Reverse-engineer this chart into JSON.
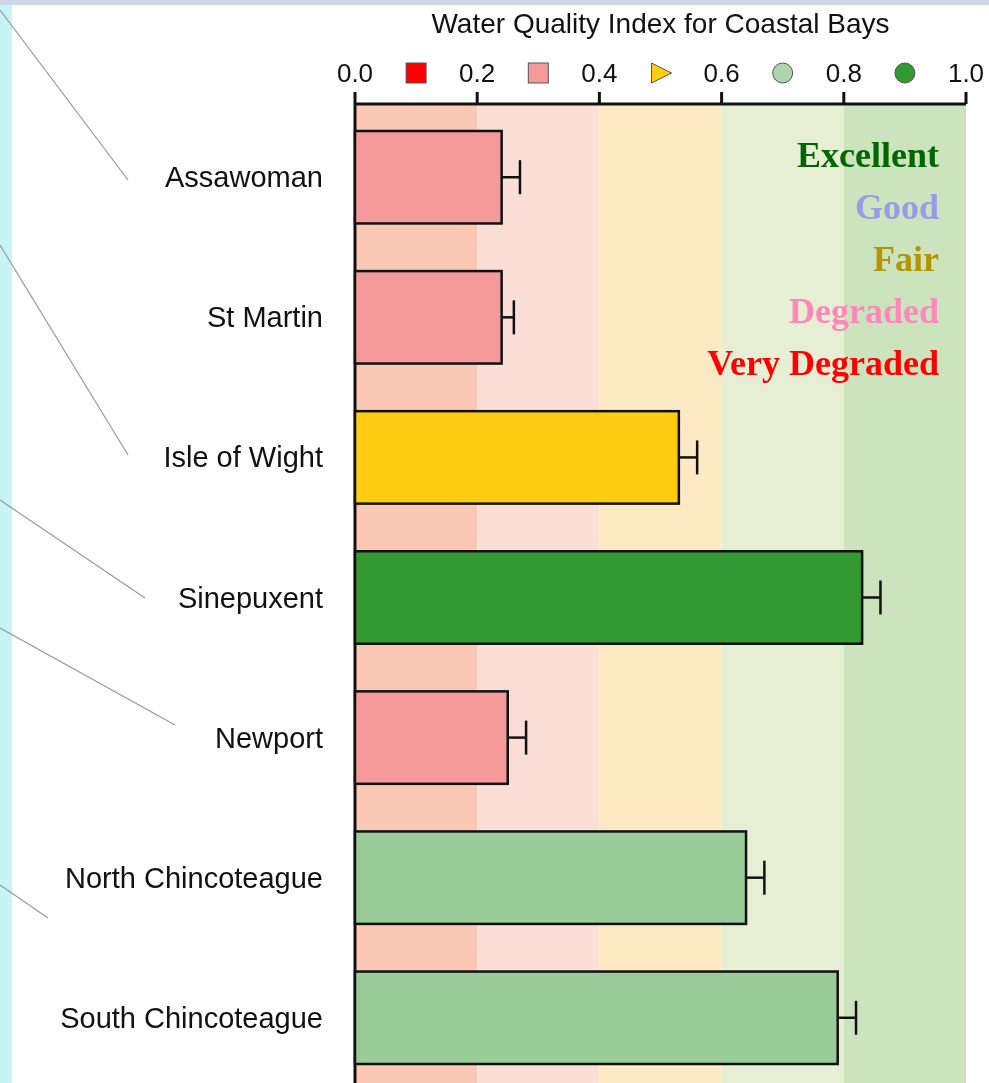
{
  "chart_data": {
    "type": "bar",
    "orientation": "horizontal",
    "title": "Water Quality Index for Coastal Bays",
    "categories": [
      "Assawoman",
      "St Martin",
      "Isle of Wight",
      "Sinepuxent",
      "Newport",
      "North Chincoteague",
      "South Chincoteague"
    ],
    "values": [
      0.24,
      0.24,
      0.53,
      0.83,
      0.25,
      0.64,
      0.79
    ],
    "colors": [
      "#f49a9a",
      "#f49a9a",
      "#ffcc11",
      "#339933",
      "#f49a9a",
      "#99cc99",
      "#99cc99"
    ],
    "errors": [
      [
        0.24,
        0.27
      ],
      [
        0.24,
        0.26
      ],
      [
        0.53,
        0.56
      ],
      [
        0.83,
        0.86
      ],
      [
        0.25,
        0.28
      ],
      [
        0.64,
        0.67
      ],
      [
        0.79,
        0.82
      ]
    ],
    "xlim": [
      0,
      1
    ],
    "xticks": [
      {
        "value": 0,
        "label": "0.0"
      },
      {
        "value": 0.2,
        "label": "0.2"
      },
      {
        "value": 0.4,
        "label": "0.4"
      },
      {
        "value": 0.6,
        "label": "0.6"
      },
      {
        "value": 0.8,
        "label": "0.8"
      },
      {
        "value": 1,
        "label": "1.0"
      }
    ],
    "bands": [
      {
        "axis": "x",
        "from": 0,
        "to": 0.2,
        "color": "#fac8b4"
      },
      {
        "axis": "x",
        "from": 0.2,
        "to": 0.4,
        "color": "#fbdfd6"
      },
      {
        "axis": "x",
        "from": 0.4,
        "to": 0.6,
        "color": "#fde9c4"
      },
      {
        "axis": "x",
        "from": 0.6,
        "to": 0.8,
        "color": "#e6efd4"
      },
      {
        "axis": "x",
        "from": 0.8,
        "to": 1,
        "color": "#cbe4bd"
      }
    ],
    "annotations": [
      "Excellent",
      "Good",
      "Fair",
      "Degraded",
      "Very Degraded"
    ]
  }
}
